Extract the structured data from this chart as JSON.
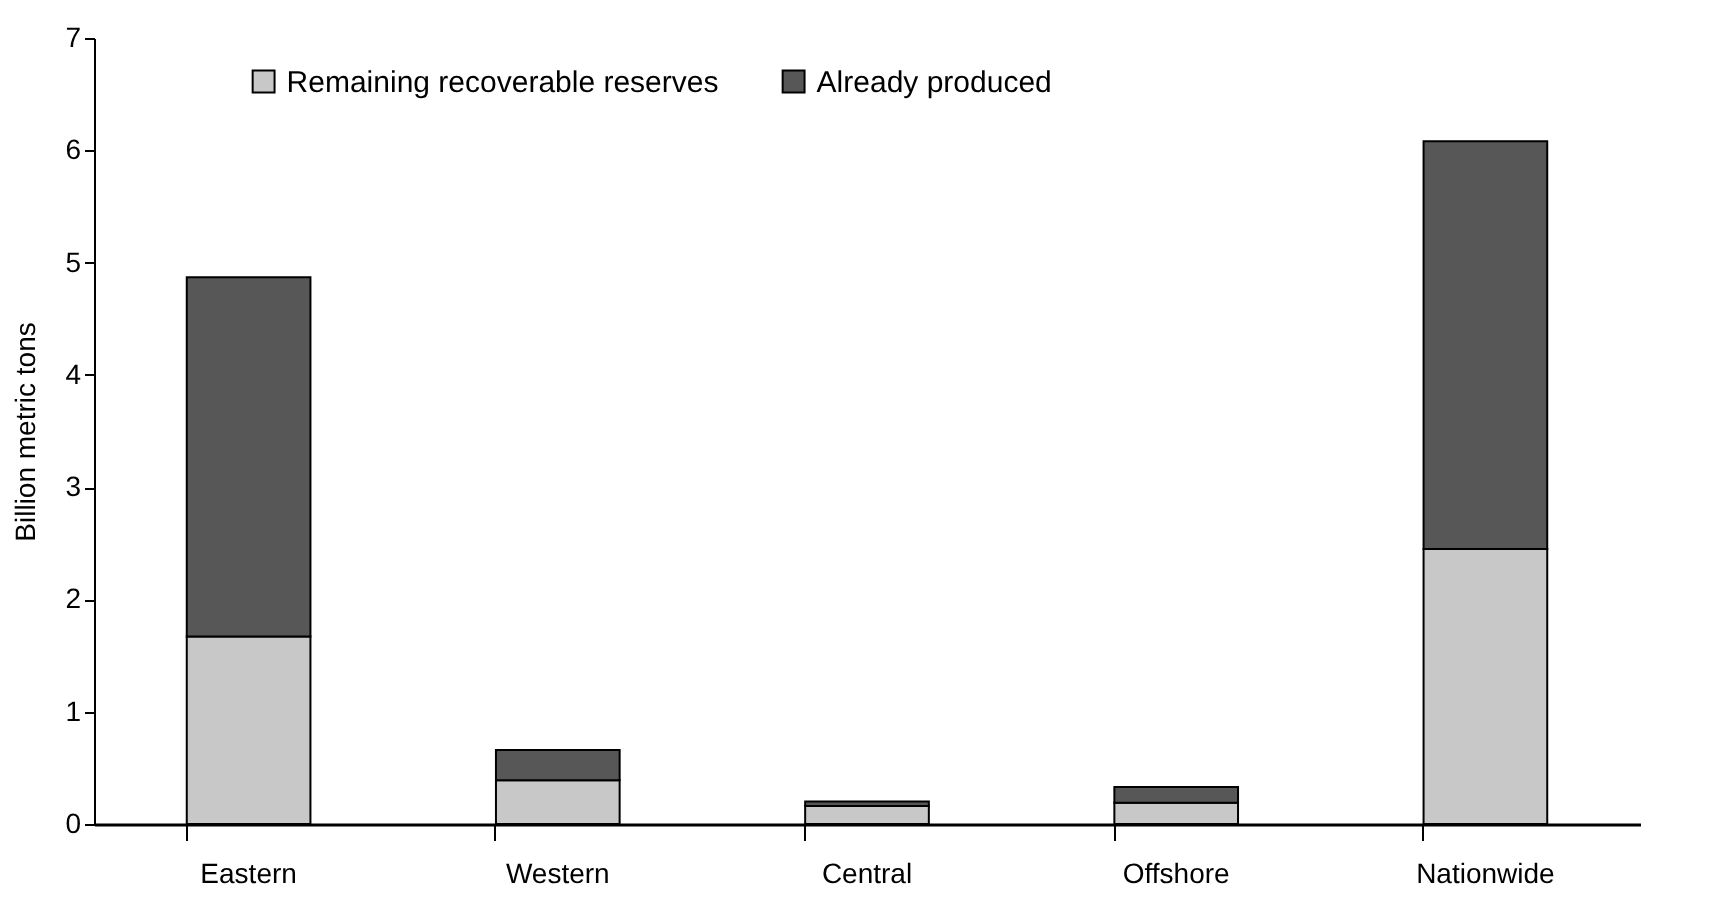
{
  "chart_data": {
    "type": "bar",
    "stacked": true,
    "ylabel": "Billion metric tons",
    "categories": [
      "Eastern",
      "Western",
      "Central",
      "Offshore",
      "Nationwide"
    ],
    "series": [
      {
        "name": "Remaining recoverable reserves",
        "color": "#c8c8c8",
        "values": [
          1.67,
          0.39,
          0.16,
          0.19,
          2.45
        ]
      },
      {
        "name": "Already produced",
        "color": "#575757",
        "values": [
          3.2,
          0.27,
          0.04,
          0.14,
          3.63
        ]
      }
    ],
    "ylim": [
      0,
      7
    ],
    "yticks": [
      0,
      1,
      2,
      3,
      4,
      5,
      6,
      7
    ],
    "grid": false,
    "legend": "top"
  }
}
